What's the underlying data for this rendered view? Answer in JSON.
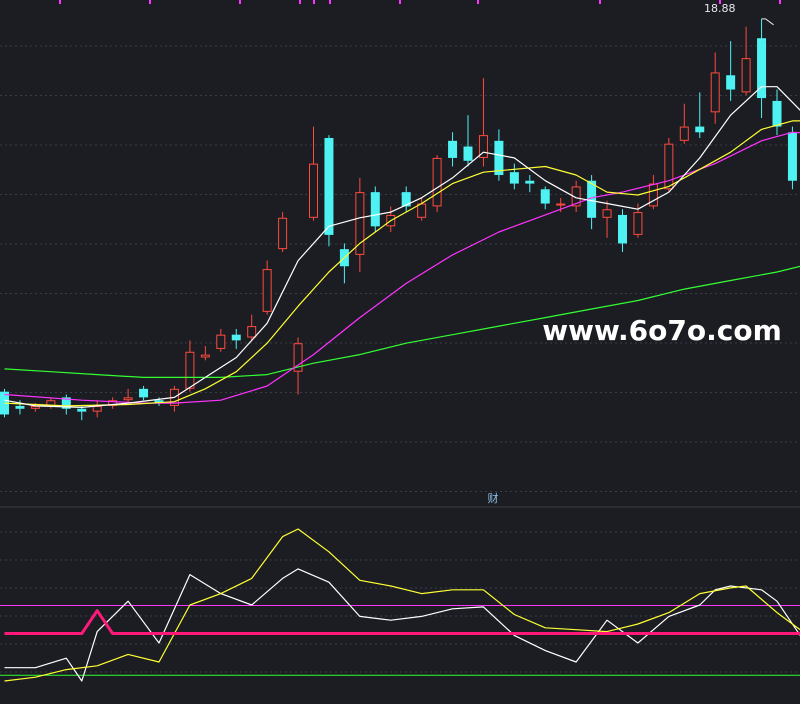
{
  "watermark": "www.6o7o.com",
  "divider_label": "财",
  "colors": {
    "bg": "#1b1d23",
    "grid": "#3a3d45",
    "up": "#ff4a3d",
    "down": "#4ef2f2",
    "ma5": "#ffffff",
    "ma10": "#ffff33",
    "ma20": "#ff33ff",
    "ma60": "#33ff33",
    "osc_white": "#ffffff",
    "osc_yellow": "#ffff33",
    "signal": "#ff1a7a",
    "level_upper": "#ff33ff",
    "level_lower": "#33ff33",
    "top_marks": "#ff33ff"
  },
  "chart_data": [
    {
      "type": "candlestick",
      "high_label": "18.88",
      "ylim": [
        2.0,
        19.4
      ],
      "candles": [
        [
          5.8,
          5.0,
          5.9,
          4.9
        ],
        [
          5.3,
          5.2,
          5.5,
          5.0
        ],
        [
          5.2,
          5.3,
          5.4,
          5.1
        ],
        [
          5.3,
          5.5,
          5.6,
          5.2
        ],
        [
          5.6,
          5.2,
          5.7,
          5.0
        ],
        [
          5.2,
          5.1,
          5.3,
          4.8
        ],
        [
          5.1,
          5.3,
          5.5,
          4.9
        ],
        [
          5.3,
          5.5,
          5.6,
          5.2
        ],
        [
          5.5,
          5.6,
          5.9,
          5.4
        ],
        [
          5.9,
          5.6,
          6.0,
          5.5
        ],
        [
          5.5,
          5.4,
          5.6,
          5.3
        ],
        [
          5.3,
          5.9,
          6.0,
          5.1
        ],
        [
          5.9,
          7.2,
          7.6,
          5.8
        ],
        [
          7.0,
          7.1,
          7.4,
          6.9
        ],
        [
          7.3,
          7.8,
          8.0,
          7.2
        ],
        [
          7.8,
          7.6,
          8.0,
          7.3
        ],
        [
          7.7,
          8.1,
          8.5,
          7.6
        ],
        [
          8.6,
          10.1,
          10.4,
          8.5
        ],
        [
          10.8,
          11.9,
          12.1,
          10.7
        ],
        [
          6.5,
          7.5,
          7.7,
          5.7
        ],
        [
          11.9,
          13.8,
          15.1,
          11.8
        ],
        [
          14.7,
          11.3,
          14.8,
          10.9
        ],
        [
          10.8,
          10.2,
          11.0,
          9.6
        ],
        [
          10.6,
          12.8,
          13.3,
          10.0
        ],
        [
          12.8,
          11.6,
          13.0,
          11.4
        ],
        [
          11.6,
          12.0,
          12.3,
          11.4
        ],
        [
          12.8,
          12.3,
          13.0,
          12.1
        ],
        [
          11.9,
          12.4,
          12.6,
          11.8
        ],
        [
          12.3,
          14.0,
          14.1,
          12.1
        ],
        [
          14.6,
          14.0,
          14.9,
          13.7
        ],
        [
          14.4,
          13.9,
          15.5,
          13.7
        ],
        [
          14.0,
          14.8,
          16.8,
          13.7
        ],
        [
          14.6,
          13.4,
          15.0,
          13.2
        ],
        [
          13.5,
          13.1,
          13.8,
          12.9
        ],
        [
          13.2,
          13.1,
          13.4,
          12.8
        ],
        [
          12.9,
          12.4,
          13.0,
          12.2
        ],
        [
          12.4,
          12.4,
          12.6,
          12.1
        ],
        [
          12.3,
          13.0,
          13.2,
          12.1
        ],
        [
          13.2,
          11.9,
          13.4,
          11.5
        ],
        [
          11.9,
          12.2,
          12.5,
          11.2
        ],
        [
          12.0,
          11.0,
          12.2,
          10.7
        ],
        [
          11.3,
          12.1,
          12.4,
          11.2
        ],
        [
          12.3,
          13.1,
          13.4,
          12.2
        ],
        [
          12.9,
          14.5,
          14.7,
          12.8
        ],
        [
          14.6,
          15.1,
          15.9,
          14.5
        ],
        [
          15.1,
          14.9,
          16.3,
          14.7
        ],
        [
          15.6,
          17.0,
          17.7,
          15.2
        ],
        [
          16.9,
          16.4,
          18.1,
          16.0
        ],
        [
          16.3,
          17.5,
          18.6,
          16.2
        ],
        [
          18.2,
          16.1,
          18.88,
          15.4
        ],
        [
          16.0,
          15.1,
          16.4,
          14.8
        ],
        [
          14.9,
          13.2,
          15.1,
          12.9
        ],
        [
          13.1,
          13.5,
          13.7,
          12.8
        ],
        [
          13.6,
          14.9,
          15.0,
          13.5
        ],
        [
          14.7,
          14.8,
          15.6,
          14.2
        ],
        [
          14.9,
          13.9,
          15.3,
          13.4
        ],
        [
          13.6,
          12.7,
          14.6,
          12.4
        ],
        [
          12.8,
          13.2,
          13.4,
          12.6
        ]
      ],
      "ma5": [
        [
          0,
          5.5
        ],
        [
          2,
          5.3
        ],
        [
          5,
          5.25
        ],
        [
          8,
          5.4
        ],
        [
          11,
          5.6
        ],
        [
          13,
          6.3
        ],
        [
          15,
          7.0
        ],
        [
          17,
          8.2
        ],
        [
          19,
          10.4
        ],
        [
          21,
          11.6
        ],
        [
          23,
          11.9
        ],
        [
          25,
          12.1
        ],
        [
          27,
          12.6
        ],
        [
          29,
          13.3
        ],
        [
          31,
          14.2
        ],
        [
          33,
          14.0
        ],
        [
          35,
          13.2
        ],
        [
          37,
          12.6
        ],
        [
          39,
          12.4
        ],
        [
          41,
          12.2
        ],
        [
          43,
          12.8
        ],
        [
          45,
          14.0
        ],
        [
          47,
          15.5
        ],
        [
          49,
          16.5
        ],
        [
          50,
          16.5
        ],
        [
          52,
          15.4
        ],
        [
          54,
          14.6
        ],
        [
          56,
          14.1
        ],
        [
          58,
          13.9
        ]
      ],
      "ma10": [
        [
          0,
          5.4
        ],
        [
          4,
          5.3
        ],
        [
          8,
          5.35
        ],
        [
          11,
          5.45
        ],
        [
          13,
          5.9
        ],
        [
          15,
          6.5
        ],
        [
          17,
          7.5
        ],
        [
          19,
          8.8
        ],
        [
          21,
          10.0
        ],
        [
          23,
          11.0
        ],
        [
          25,
          11.8
        ],
        [
          27,
          12.4
        ],
        [
          29,
          13.1
        ],
        [
          31,
          13.5
        ],
        [
          33,
          13.6
        ],
        [
          35,
          13.7
        ],
        [
          37,
          13.4
        ],
        [
          39,
          12.8
        ],
        [
          41,
          12.7
        ],
        [
          43,
          13.0
        ],
        [
          45,
          13.6
        ],
        [
          47,
          14.2
        ],
        [
          49,
          15.0
        ],
        [
          51,
          15.3
        ],
        [
          53,
          15.3
        ],
        [
          55,
          15.1
        ],
        [
          57,
          14.7
        ],
        [
          58,
          14.4
        ]
      ],
      "ma20": [
        [
          0,
          5.7
        ],
        [
          5,
          5.5
        ],
        [
          9,
          5.4
        ],
        [
          11,
          5.4
        ],
        [
          14,
          5.5
        ],
        [
          17,
          6.0
        ],
        [
          20,
          7.1
        ],
        [
          23,
          8.4
        ],
        [
          26,
          9.6
        ],
        [
          29,
          10.6
        ],
        [
          32,
          11.4
        ],
        [
          35,
          12.0
        ],
        [
          38,
          12.6
        ],
        [
          40,
          12.8
        ],
        [
          43,
          13.2
        ],
        [
          46,
          13.8
        ],
        [
          49,
          14.6
        ],
        [
          51,
          14.9
        ],
        [
          54,
          14.8
        ],
        [
          57,
          14.5
        ],
        [
          58,
          14.5
        ]
      ],
      "ma60": [
        [
          0,
          6.6
        ],
        [
          3,
          6.5
        ],
        [
          6,
          6.4
        ],
        [
          9,
          6.3
        ],
        [
          11,
          6.3
        ],
        [
          14,
          6.3
        ],
        [
          17,
          6.4
        ],
        [
          20,
          6.8
        ],
        [
          23,
          7.1
        ],
        [
          26,
          7.5
        ],
        [
          29,
          7.8
        ],
        [
          32,
          8.1
        ],
        [
          35,
          8.4
        ],
        [
          38,
          8.7
        ],
        [
          41,
          9.0
        ],
        [
          44,
          9.4
        ],
        [
          47,
          9.7
        ],
        [
          50,
          10.0
        ],
        [
          53,
          10.4
        ],
        [
          56,
          10.7
        ],
        [
          58,
          10.9
        ]
      ]
    },
    {
      "type": "line",
      "ylim": [
        0,
        100
      ],
      "levels": [
        {
          "value": 35
        },
        {
          "value": 13
        }
      ],
      "series": [
        {
          "color_key": "osc_white",
          "points": [
            [
              0,
              17
            ],
            [
              2,
              17
            ],
            [
              4,
              22
            ],
            [
              5,
              10
            ],
            [
              6,
              36
            ],
            [
              8,
              52
            ],
            [
              10,
              30
            ],
            [
              12,
              66
            ],
            [
              14,
              56
            ],
            [
              16,
              50
            ],
            [
              18,
              64
            ],
            [
              19,
              69
            ],
            [
              21,
              62
            ],
            [
              23,
              44
            ],
            [
              25,
              42
            ],
            [
              27,
              44
            ],
            [
              29,
              48
            ],
            [
              31,
              49
            ],
            [
              33,
              34
            ],
            [
              35,
              26
            ],
            [
              37,
              20
            ],
            [
              39,
              42
            ],
            [
              41,
              30
            ],
            [
              43,
              44
            ],
            [
              45,
              50
            ],
            [
              46,
              58
            ],
            [
              47,
              60
            ],
            [
              49,
              58
            ],
            [
              50,
              52
            ],
            [
              52,
              28
            ],
            [
              54,
              28
            ],
            [
              56,
              24
            ],
            [
              58,
              14
            ]
          ]
        },
        {
          "color_key": "osc_yellow",
          "points": [
            [
              0,
              10
            ],
            [
              2,
              12
            ],
            [
              4,
              16
            ],
            [
              6,
              18
            ],
            [
              8,
              24
            ],
            [
              10,
              20
            ],
            [
              12,
              50
            ],
            [
              14,
              56
            ],
            [
              16,
              64
            ],
            [
              18,
              86
            ],
            [
              19,
              90
            ],
            [
              21,
              78
            ],
            [
              23,
              63
            ],
            [
              25,
              60
            ],
            [
              27,
              56
            ],
            [
              29,
              58
            ],
            [
              31,
              58
            ],
            [
              33,
              45
            ],
            [
              35,
              38
            ],
            [
              37,
              37
            ],
            [
              39,
              36
            ],
            [
              41,
              40
            ],
            [
              43,
              46
            ],
            [
              45,
              56
            ],
            [
              47,
              59
            ],
            [
              48,
              60
            ],
            [
              50,
              46
            ],
            [
              52,
              34
            ],
            [
              54,
              38
            ],
            [
              56,
              36
            ],
            [
              58,
              24
            ]
          ]
        },
        {
          "color_key": "signal",
          "points": [
            [
              0,
              35
            ],
            [
              5,
              35
            ],
            [
              6,
              47
            ],
            [
              7,
              35
            ],
            [
              58,
              35
            ]
          ]
        }
      ]
    }
  ]
}
